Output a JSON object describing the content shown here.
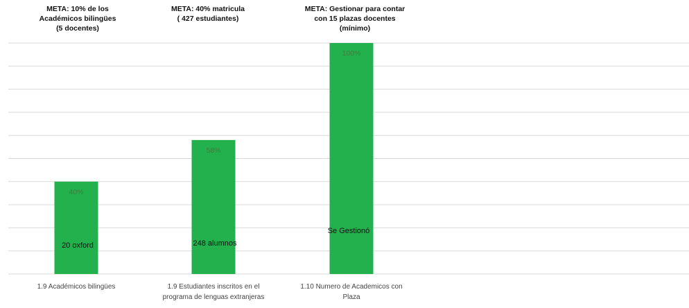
{
  "chart_data": {
    "type": "bar",
    "categories": [
      [
        "1.9 Académicos bilingües"
      ],
      [
        "1.9 Estudiantes inscritos en el",
        "programa de lenguas extranjeras"
      ],
      [
        "1.10 Numero de Academicos con",
        "Plaza"
      ]
    ],
    "values": [
      40,
      58,
      100
    ],
    "data_labels": [
      "40%",
      "58%",
      "100%"
    ],
    "annotations": [
      "20 oxford",
      "248 alumnos",
      "Se Gestionó"
    ],
    "goals": [
      [
        "META: 10% de los",
        "Académicos bilingües",
        "(5 docentes)"
      ],
      [
        "META: 40% matricula",
        "( 427 estudiantes)"
      ],
      [
        "META: Gestionar para contar",
        "con 15 plazas docentes",
        "(mínimo)"
      ]
    ],
    "ylim": [
      0,
      100
    ],
    "grid": true,
    "colors": {
      "bar": "#22b14c",
      "grid": "#d9d9d9",
      "data_label": "#3f7d3f"
    }
  }
}
